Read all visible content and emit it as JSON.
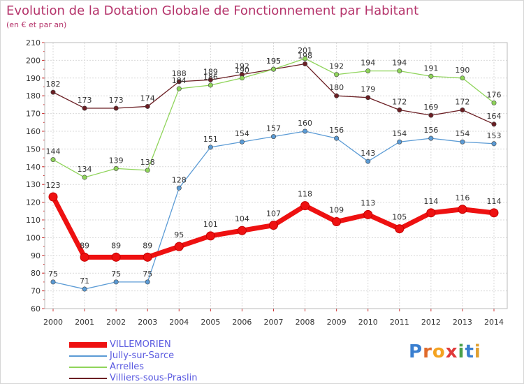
{
  "header": {
    "title": "Evolution de la Dotation Globale de Fonctionnement par Habitant",
    "subtitle": "(en € et par an)"
  },
  "brand": {
    "letters": [
      "P",
      "r",
      "o",
      "x",
      "i",
      "t",
      "i"
    ],
    "colors": [
      "#3a7fd0",
      "#e06a2a",
      "#f4a321",
      "#e03a3a",
      "#4aa04a",
      "#3a7fd0",
      "#e0a030"
    ]
  },
  "chart_data": {
    "type": "line",
    "title": "Evolution de la Dotation Globale de Fonctionnement par Habitant",
    "subtitle": "(en € et par an)",
    "x": [
      "2000",
      "2001",
      "2002",
      "2003",
      "2004",
      "2005",
      "2006",
      "2007",
      "2008",
      "2009",
      "2010",
      "2011",
      "2012",
      "2013",
      "2014"
    ],
    "ylim": [
      60,
      210
    ],
    "yticks": [
      60,
      70,
      80,
      90,
      100,
      110,
      120,
      130,
      140,
      150,
      160,
      170,
      180,
      190,
      200,
      210
    ],
    "grid": true,
    "legend_position": "bottom-left",
    "series": [
      {
        "name": "VILLEMORIEN",
        "color": "#ee1111",
        "values": [
          123,
          89,
          89,
          89,
          95,
          101,
          104,
          107,
          118,
          109,
          113,
          105,
          114,
          116,
          114
        ]
      },
      {
        "name": "Jully-sur-Sarce",
        "color": "#5b9bd5",
        "values": [
          75,
          71,
          75,
          75,
          128,
          151,
          154,
          157,
          160,
          156,
          143,
          154,
          156,
          154,
          153
        ]
      },
      {
        "name": "Arrelles",
        "color": "#8fd45a",
        "values": [
          144,
          134,
          139,
          138,
          184,
          186,
          190,
          195,
          201,
          192,
          194,
          194,
          191,
          190,
          176
        ]
      },
      {
        "name": "Villiers-sous-Praslin",
        "color": "#6b1f24",
        "values": [
          182,
          173,
          173,
          174,
          188,
          189,
          192,
          195,
          198,
          180,
          179,
          172,
          169,
          172,
          164
        ]
      }
    ]
  }
}
